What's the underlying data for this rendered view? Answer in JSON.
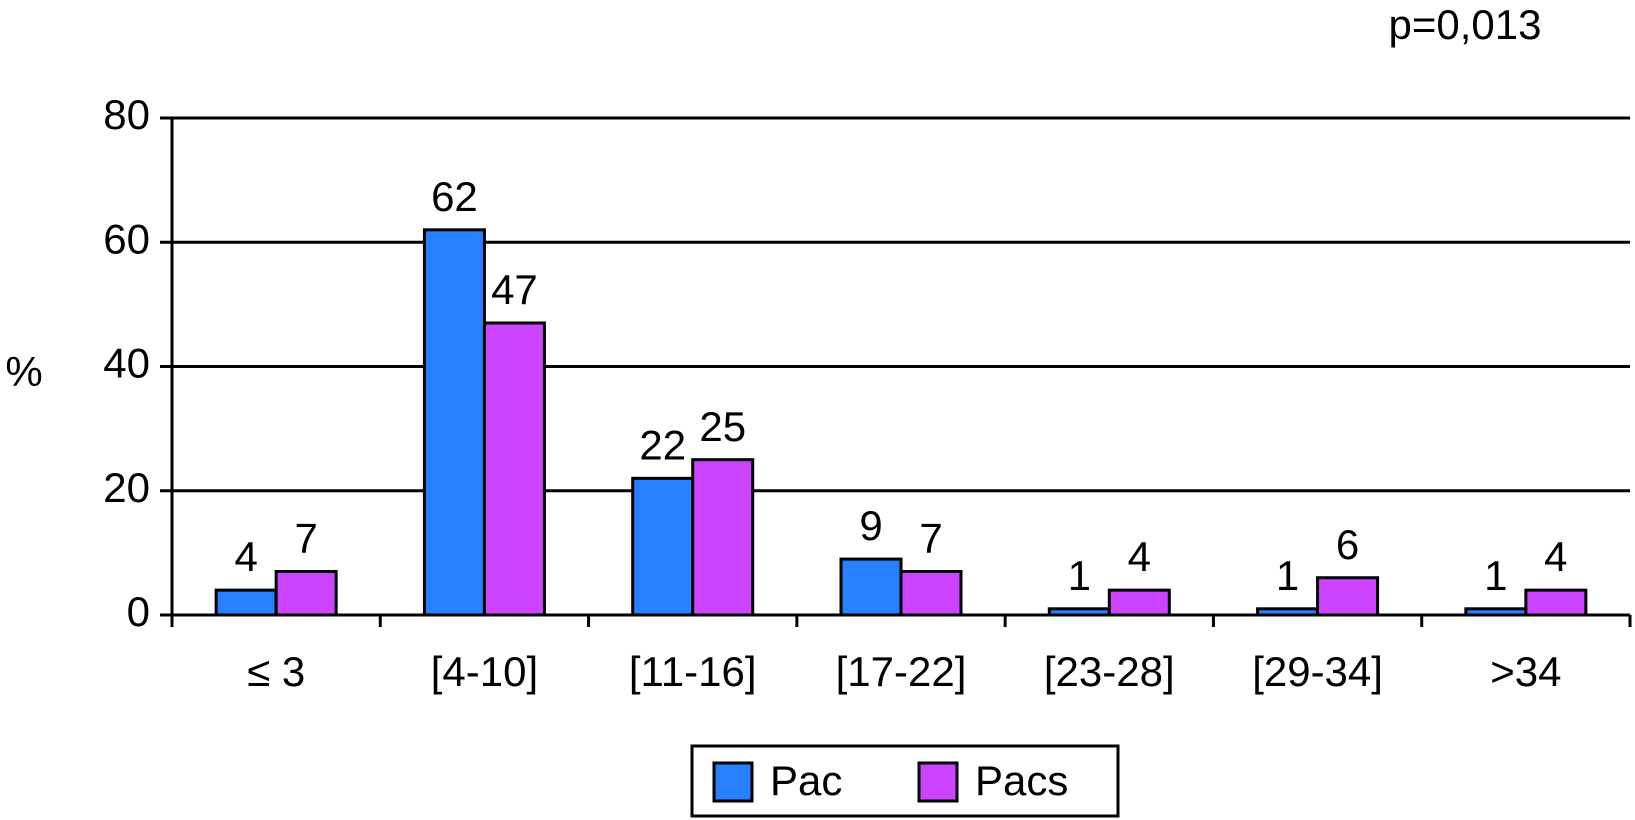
{
  "chart_data": {
    "type": "bar",
    "annotation": "p=0,013",
    "y_label": "%",
    "categories": [
      "≤ 3",
      "[4-10]",
      "[11-16]",
      "[17-22]",
      "[23-28]",
      "[29-34]",
      ">34"
    ],
    "series": [
      {
        "name": "Pac",
        "color": "#2680ff",
        "values": [
          4,
          62,
          22,
          9,
          1,
          1,
          1
        ]
      },
      {
        "name": "Pacs",
        "color": "#cc44ff",
        "values": [
          7,
          47,
          25,
          7,
          4,
          6,
          4
        ]
      }
    ],
    "ylim": [
      0,
      80
    ],
    "yticks": [
      0,
      20,
      40,
      60,
      80
    ],
    "grid": true,
    "legend": "bottom"
  }
}
